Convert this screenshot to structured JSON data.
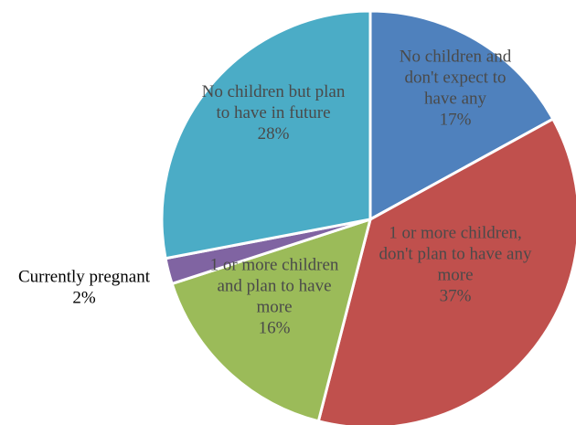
{
  "chart_data": {
    "type": "pie",
    "title": "",
    "slices": [
      {
        "label_lines": [
          "No children and",
          "don't expect to",
          "have any"
        ],
        "value_label": "17%",
        "value": 17,
        "color": "#4f81bd"
      },
      {
        "label_lines": [
          "1 or more children,",
          "don't plan to have any",
          "more"
        ],
        "value_label": "37%",
        "value": 37,
        "color": "#c0504d"
      },
      {
        "label_lines": [
          "1 or more children",
          "and plan to have",
          "more"
        ],
        "value_label": "16%",
        "value": 16,
        "color": "#9bbb59"
      },
      {
        "label_lines": [
          "Currently pregnant"
        ],
        "value_label": "2%",
        "value": 2,
        "color": "#8064a2"
      },
      {
        "label_lines": [
          "No children but plan",
          "to have in future"
        ],
        "value_label": "28%",
        "value": 28,
        "color": "#4bacc6"
      }
    ]
  }
}
